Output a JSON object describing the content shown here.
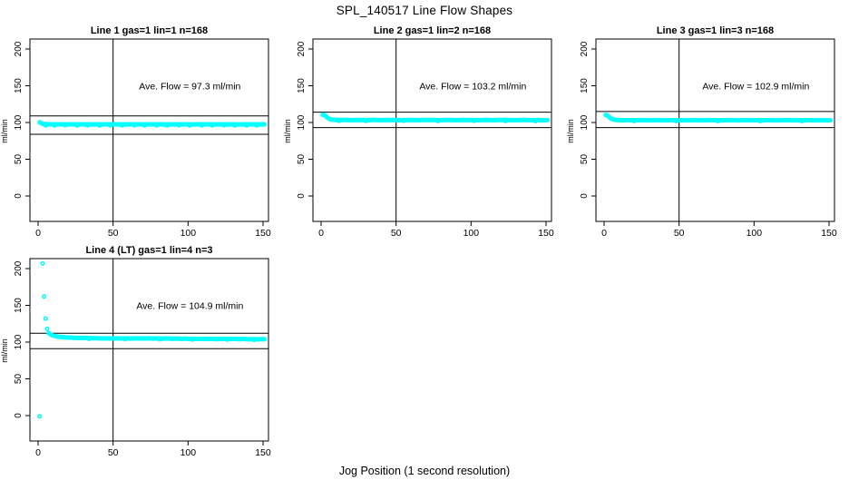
{
  "page": {
    "title": "SPL_140517  Line Flow Shapes",
    "xlabel": "Jog Position (1 second resolution)"
  },
  "colors": {
    "point": "#00FFFF",
    "axis": "#000000",
    "background": "#FFFFFF"
  },
  "chart_data": [
    {
      "type": "scatter",
      "title": "Line 1 gas=1 lin=1 n=168",
      "annotation": "Ave. Flow =  97.3  ml/min",
      "ave_flow": 97.3,
      "ylabel": "ml/min",
      "xticks": [
        0,
        50,
        100,
        150
      ],
      "yticks": [
        0,
        50,
        100,
        150,
        200
      ],
      "xlim": [
        -5.4,
        153.6
      ],
      "ylim": [
        -35,
        214
      ],
      "vline_x": 50,
      "hline_upper": 109,
      "hline_lower": 84,
      "points": [
        [
          1,
          100.3
        ],
        [
          2,
          99.1
        ],
        [
          3,
          98.3
        ],
        [
          4,
          97.9
        ],
        [
          6,
          97.6
        ],
        [
          8,
          97.4
        ],
        [
          10,
          97.6
        ],
        [
          13,
          97.3
        ],
        [
          16,
          97.6
        ],
        [
          19,
          97.2
        ],
        [
          22,
          97.5
        ],
        [
          25,
          97.3
        ],
        [
          28,
          97.6
        ],
        [
          31,
          97.3
        ],
        [
          34,
          97.5
        ],
        [
          37,
          97.2
        ],
        [
          40,
          97.5
        ],
        [
          43,
          97.3
        ],
        [
          46,
          97.6
        ],
        [
          49,
          97.3
        ],
        [
          52,
          97.5
        ],
        [
          55,
          97.2
        ],
        [
          58,
          97.4
        ],
        [
          61,
          97.6
        ],
        [
          64,
          97.3
        ],
        [
          67,
          97.5
        ],
        [
          70,
          97.2
        ],
        [
          73,
          97.4
        ],
        [
          76,
          97.6
        ],
        [
          79,
          97.3
        ],
        [
          82,
          97.5
        ],
        [
          85,
          97.2
        ],
        [
          88,
          97.4
        ],
        [
          91,
          97.3
        ],
        [
          94,
          97.6
        ],
        [
          97,
          97.3
        ],
        [
          100,
          97.5
        ],
        [
          103,
          97.2
        ],
        [
          106,
          97.4
        ],
        [
          109,
          97.6
        ],
        [
          112,
          97.3
        ],
        [
          115,
          97.5
        ],
        [
          118,
          97.2
        ],
        [
          121,
          97.4
        ],
        [
          124,
          97.6
        ],
        [
          127,
          97.3
        ],
        [
          130,
          97.5
        ],
        [
          133,
          97.2
        ],
        [
          136,
          97.4
        ],
        [
          139,
          97.6
        ],
        [
          142,
          97.3
        ],
        [
          145,
          97.5
        ],
        [
          148,
          97.3
        ],
        [
          151,
          97.4
        ]
      ],
      "low_points": [
        [
          5,
          96.1
        ],
        [
          11,
          95.9
        ],
        [
          18,
          96.2
        ],
        [
          26,
          96.0
        ],
        [
          33,
          96.2
        ],
        [
          41,
          95.9
        ],
        [
          48,
          96.1
        ],
        [
          56,
          96.0
        ],
        [
          64,
          96.2
        ],
        [
          71,
          95.9
        ],
        [
          79,
          96.1
        ],
        [
          86,
          96.0
        ],
        [
          94,
          96.2
        ],
        [
          101,
          95.9
        ],
        [
          109,
          96.1
        ],
        [
          116,
          96.0
        ],
        [
          124,
          96.2
        ],
        [
          131,
          95.9
        ],
        [
          139,
          96.1
        ],
        [
          146,
          96.0
        ]
      ]
    },
    {
      "type": "scatter",
      "title": "Line 2 gas=1 lin=2 n=168",
      "annotation": "Ave. Flow =  103.2  ml/min",
      "ave_flow": 103.2,
      "ylabel": "ml/min",
      "xticks": [
        0,
        50,
        100,
        150
      ],
      "yticks": [
        0,
        50,
        100,
        150,
        200
      ],
      "xlim": [
        -5.4,
        153.6
      ],
      "ylim": [
        -35,
        214
      ],
      "vline_x": 50,
      "hline_upper": 114,
      "hline_lower": 93,
      "points": [
        [
          1,
          110.6
        ],
        [
          2,
          110.2
        ],
        [
          3,
          108.9
        ],
        [
          4,
          107.0
        ],
        [
          5,
          105.6
        ],
        [
          6,
          104.6
        ],
        [
          7,
          104.0
        ],
        [
          8,
          103.7
        ],
        [
          10,
          103.5
        ],
        [
          13,
          103.3
        ],
        [
          16,
          103.5
        ],
        [
          20,
          103.2
        ],
        [
          25,
          103.4
        ],
        [
          30,
          103.2
        ],
        [
          35,
          103.4
        ],
        [
          40,
          103.2
        ],
        [
          45,
          103.4
        ],
        [
          50,
          103.3
        ],
        [
          55,
          103.2
        ],
        [
          60,
          103.4
        ],
        [
          65,
          103.2
        ],
        [
          70,
          103.4
        ],
        [
          75,
          103.3
        ],
        [
          80,
          103.2
        ],
        [
          85,
          103.4
        ],
        [
          90,
          103.2
        ],
        [
          95,
          103.4
        ],
        [
          100,
          103.3
        ],
        [
          105,
          103.2
        ],
        [
          110,
          103.4
        ],
        [
          115,
          103.2
        ],
        [
          120,
          103.4
        ],
        [
          125,
          103.3
        ],
        [
          130,
          103.2
        ],
        [
          135,
          103.4
        ],
        [
          140,
          103.2
        ],
        [
          145,
          103.3
        ],
        [
          148,
          103.2
        ],
        [
          151,
          103.3
        ]
      ],
      "low_points": [
        [
          12,
          102.2
        ],
        [
          30,
          102.1
        ],
        [
          55,
          102.2
        ],
        [
          78,
          102.0
        ],
        [
          102,
          102.2
        ],
        [
          123,
          102.1
        ],
        [
          143,
          102.0
        ]
      ]
    },
    {
      "type": "scatter",
      "title": "Line 3 gas=1 lin=3 n=168",
      "annotation": "Ave. Flow =  102.9  ml/min",
      "ave_flow": 102.9,
      "ylabel": "ml/min",
      "xticks": [
        0,
        50,
        100,
        150
      ],
      "yticks": [
        0,
        50,
        100,
        150,
        200
      ],
      "xlim": [
        -5.4,
        153.6
      ],
      "ylim": [
        -35,
        214
      ],
      "vline_x": 50,
      "hline_upper": 115,
      "hline_lower": 93,
      "points": [
        [
          1,
          110.2
        ],
        [
          2,
          109.7
        ],
        [
          3,
          108.2
        ],
        [
          4,
          106.4
        ],
        [
          5,
          105.0
        ],
        [
          6,
          104.2
        ],
        [
          7,
          103.7
        ],
        [
          8,
          103.4
        ],
        [
          10,
          103.2
        ],
        [
          13,
          103.0
        ],
        [
          16,
          103.2
        ],
        [
          20,
          103.0
        ],
        [
          25,
          103.1
        ],
        [
          30,
          102.9
        ],
        [
          35,
          103.1
        ],
        [
          40,
          102.9
        ],
        [
          45,
          103.1
        ],
        [
          50,
          103.0
        ],
        [
          55,
          102.9
        ],
        [
          60,
          103.1
        ],
        [
          65,
          102.9
        ],
        [
          70,
          103.1
        ],
        [
          75,
          103.0
        ],
        [
          80,
          102.9
        ],
        [
          85,
          103.1
        ],
        [
          90,
          102.9
        ],
        [
          95,
          103.1
        ],
        [
          100,
          103.0
        ],
        [
          105,
          102.9
        ],
        [
          110,
          103.1
        ],
        [
          115,
          102.9
        ],
        [
          120,
          103.1
        ],
        [
          125,
          103.0
        ],
        [
          130,
          102.9
        ],
        [
          135,
          103.1
        ],
        [
          140,
          102.9
        ],
        [
          145,
          103.0
        ],
        [
          148,
          102.9
        ],
        [
          151,
          103.0
        ]
      ],
      "low_points": [
        [
          20,
          102.0
        ],
        [
          48,
          101.9
        ],
        [
          76,
          102.0
        ],
        [
          104,
          101.9
        ],
        [
          132,
          102.0
        ]
      ]
    },
    {
      "type": "scatter",
      "title": "Line 4 (LT) gas=1 lin=4 n=3",
      "annotation": "Ave. Flow =  104.9  ml/min",
      "ave_flow": 104.9,
      "ylabel": "ml/min",
      "xticks": [
        0,
        50,
        100,
        150
      ],
      "yticks": [
        0,
        50,
        100,
        150,
        200
      ],
      "xlim": [
        -5.4,
        153.6
      ],
      "ylim": [
        -35,
        214
      ],
      "vline_x": 50,
      "hline_upper": 112,
      "hline_lower": 91,
      "points": [
        [
          1,
          -1.0
        ],
        [
          3,
          207.0
        ],
        [
          4,
          162.0
        ],
        [
          5,
          132.0
        ],
        [
          6,
          118.0
        ],
        [
          7,
          112.5
        ],
        [
          8,
          110.8
        ],
        [
          9,
          109.6
        ],
        [
          10,
          108.9
        ],
        [
          12,
          107.9
        ],
        [
          14,
          107.2
        ],
        [
          16,
          106.8
        ],
        [
          18,
          106.4
        ],
        [
          20,
          106.2
        ],
        [
          23,
          105.9
        ],
        [
          26,
          105.7
        ],
        [
          29,
          105.5
        ],
        [
          32,
          105.4
        ],
        [
          35,
          105.3
        ],
        [
          38,
          105.2
        ],
        [
          41,
          105.1
        ],
        [
          44,
          105.0
        ],
        [
          47,
          105.1
        ],
        [
          50,
          104.9
        ],
        [
          53,
          105.1
        ],
        [
          56,
          104.8
        ],
        [
          59,
          105.0
        ],
        [
          62,
          104.7
        ],
        [
          65,
          105.1
        ],
        [
          68,
          104.8
        ],
        [
          71,
          104.9
        ],
        [
          74,
          105.2
        ],
        [
          77,
          104.7
        ],
        [
          80,
          104.9
        ],
        [
          83,
          104.6
        ],
        [
          86,
          105.0
        ],
        [
          89,
          104.5
        ],
        [
          92,
          104.8
        ],
        [
          95,
          104.4
        ],
        [
          98,
          104.7
        ],
        [
          101,
          104.3
        ],
        [
          104,
          104.6
        ],
        [
          107,
          104.2
        ],
        [
          110,
          104.5
        ],
        [
          113,
          104.1
        ],
        [
          116,
          104.4
        ],
        [
          119,
          104.0
        ],
        [
          122,
          104.3
        ],
        [
          125,
          104.5
        ],
        [
          128,
          104.1
        ],
        [
          131,
          104.3
        ],
        [
          134,
          103.9
        ],
        [
          137,
          104.2
        ],
        [
          140,
          103.8
        ],
        [
          143,
          104.1
        ],
        [
          146,
          103.7
        ],
        [
          149,
          104.0
        ],
        [
          151,
          103.9
        ]
      ],
      "low_points": [
        [
          34,
          104.3
        ],
        [
          58,
          104.0
        ],
        [
          81,
          103.8
        ],
        [
          103,
          103.5
        ],
        [
          126,
          103.4
        ],
        [
          144,
          103.0
        ]
      ]
    }
  ]
}
